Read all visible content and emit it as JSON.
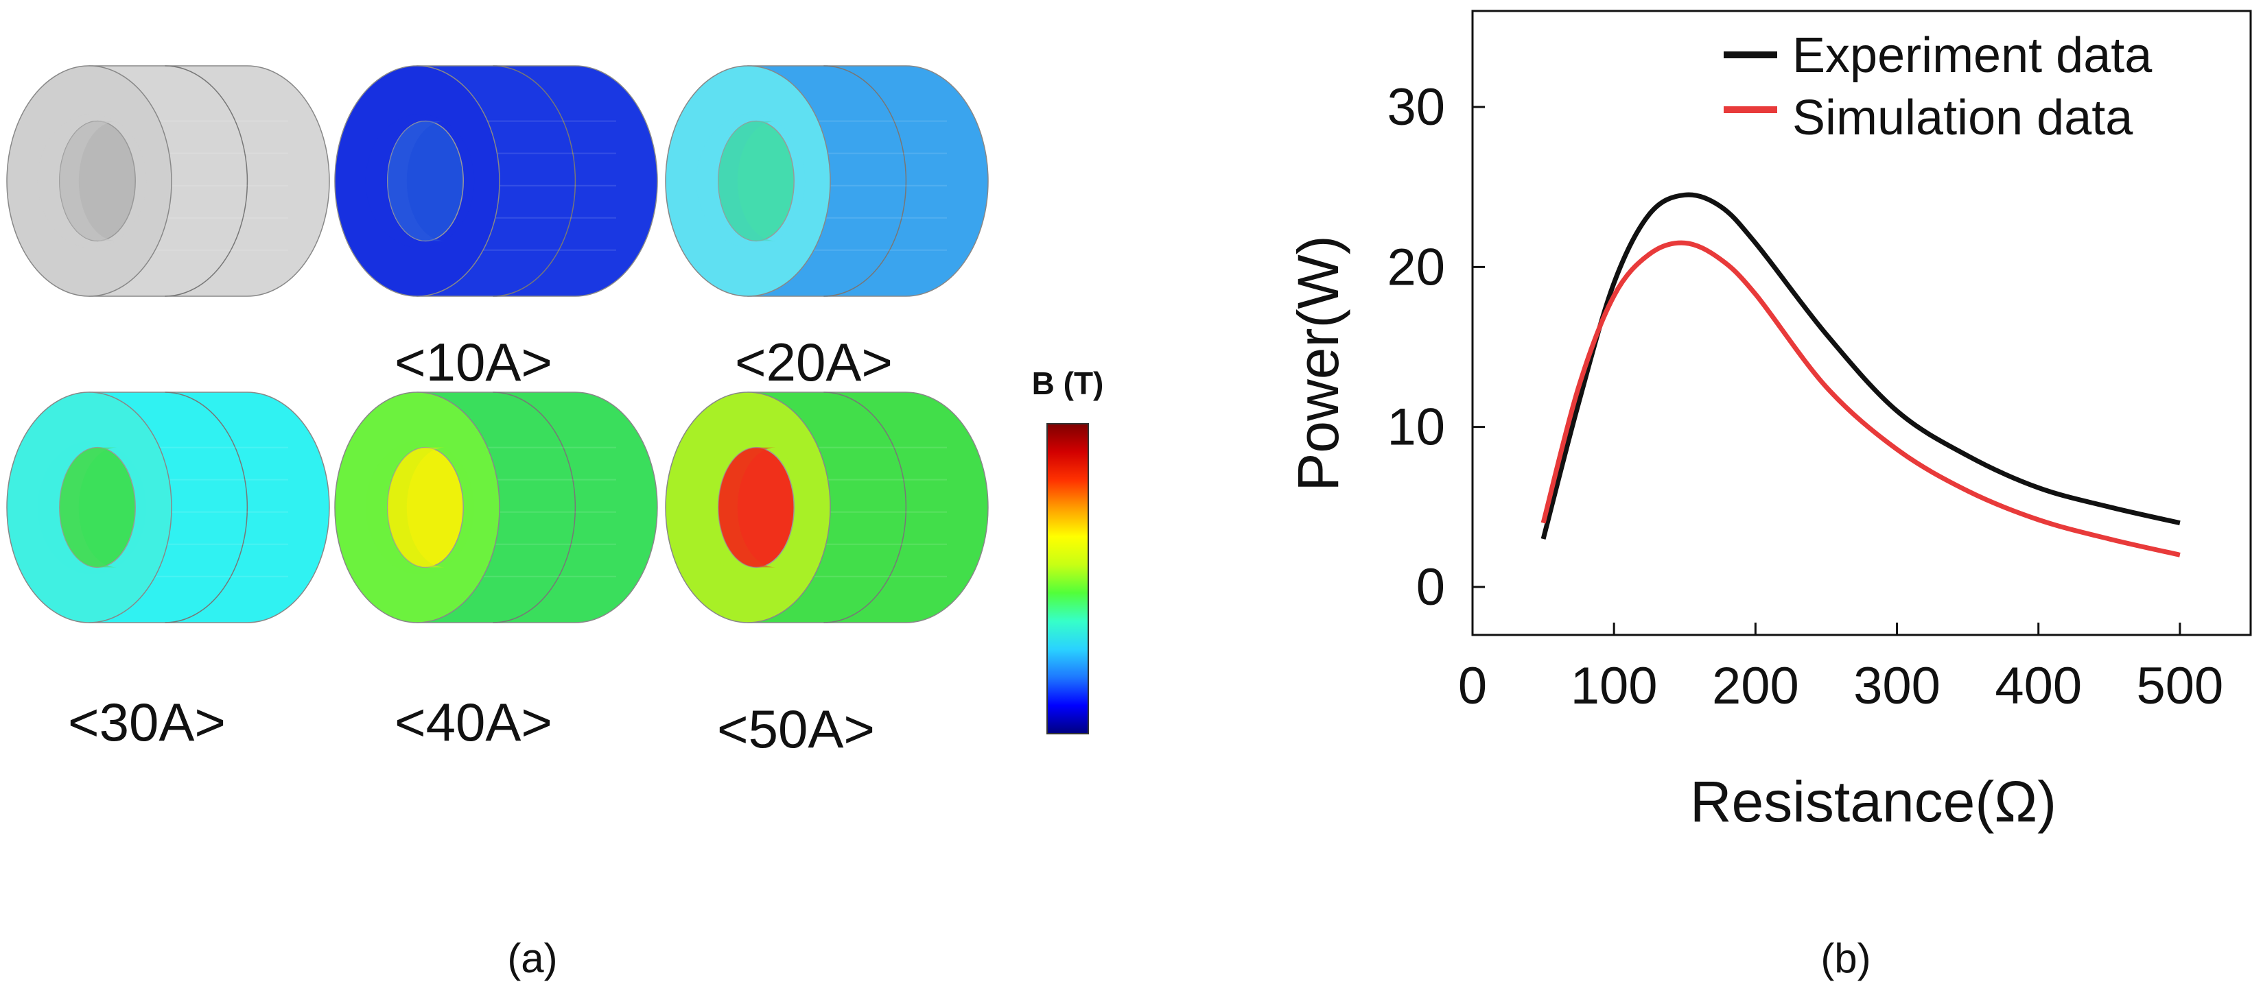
{
  "panel_a": {
    "caption": "(a)",
    "cores": [
      {
        "label": "",
        "state": "geometry"
      },
      {
        "label": "<10A>",
        "state": "10A"
      },
      {
        "label": "<20A>",
        "state": "20A"
      },
      {
        "label": "<30A>",
        "state": "30A"
      },
      {
        "label": "<40A>",
        "state": "40A"
      },
      {
        "label": "<50A>",
        "state": "50A"
      }
    ],
    "colorbar": {
      "title": "B (T)",
      "colors": [
        "#00007f",
        "#0000ff",
        "#1e78ff",
        "#2ad2ff",
        "#36ffc8",
        "#52ff3a",
        "#c8ff14",
        "#ffff00",
        "#ff9f00",
        "#ff3200",
        "#d20000",
        "#7f0000"
      ]
    },
    "core_colors": {
      "geometry": {
        "top": "#eaeaea",
        "face": "#cfcfcf",
        "hole": "#b8b8b8",
        "side": "#d6d6d6",
        "bore": "#c6c6c6"
      },
      "10A": {
        "top": "#1533e0",
        "face": "#1730e0",
        "hole": "#1f4fdc",
        "side": "#1a38e2",
        "bore": "#2a59df"
      },
      "20A": {
        "top": "#42b3f0",
        "face": "#5fe0f2",
        "hole": "#44dcae",
        "side": "#3aa4ee",
        "bore": "#46d6b8"
      },
      "30A": {
        "top": "#38f0f0",
        "face": "#40f0e2",
        "hole": "#3ce05a",
        "side": "#30f2f2",
        "bore": "#48dc60"
      },
      "40A": {
        "top": "#38e05a",
        "face": "#6cf23e",
        "hole": "#eef20a",
        "side": "#3ade5c",
        "bore": "#d8f010"
      },
      "50A": {
        "top": "#46e040",
        "face": "#a8f026",
        "hole": "#f0301a",
        "side": "#42de4a",
        "bore": "#e84018"
      }
    }
  },
  "panel_b": {
    "caption": "(b)"
  },
  "chart_data": {
    "type": "line",
    "title": "",
    "xlabel": "Resistance(Ω)",
    "ylabel": "Power(W)",
    "xlim": [
      0,
      550
    ],
    "ylim": [
      -3,
      36
    ],
    "xticks": [
      0,
      100,
      200,
      300,
      400,
      500
    ],
    "yticks": [
      0,
      10,
      20,
      30
    ],
    "grid": false,
    "legend": "top-right",
    "series": [
      {
        "name": "Experiment data",
        "color": "#111111",
        "x": [
          50,
          75,
          100,
          125,
          150,
          175,
          200,
          250,
          300,
          350,
          400,
          450,
          500
        ],
        "y": [
          3.0,
          11.5,
          19.0,
          23.3,
          24.5,
          23.8,
          21.5,
          15.8,
          11.0,
          8.2,
          6.2,
          5.0,
          4.0
        ]
      },
      {
        "name": "Simulation data",
        "color": "#e83a3a",
        "x": [
          50,
          75,
          100,
          125,
          150,
          175,
          200,
          250,
          300,
          350,
          400,
          450,
          500
        ],
        "y": [
          4.0,
          12.5,
          18.2,
          20.8,
          21.5,
          20.5,
          18.3,
          12.5,
          8.6,
          6.0,
          4.2,
          3.0,
          2.0
        ]
      }
    ]
  }
}
